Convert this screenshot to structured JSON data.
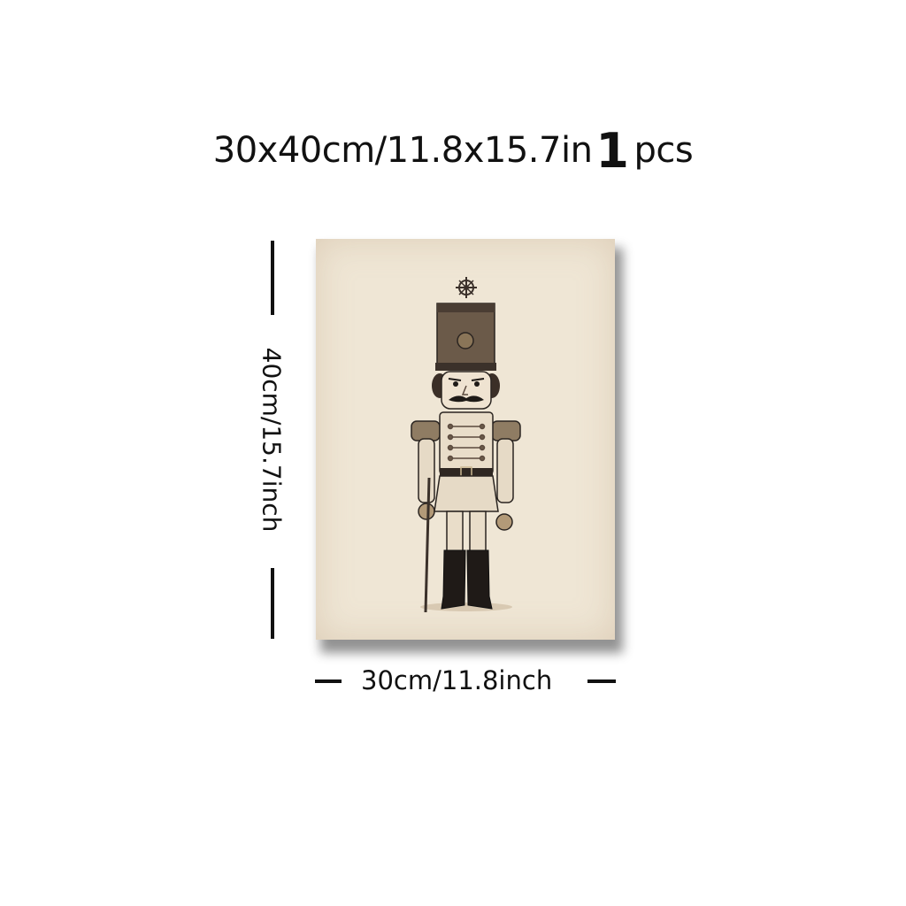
{
  "title": {
    "size_text": "30x40cm/11.8x15.7in",
    "count": "1",
    "unit": "pcs"
  },
  "dimensions": {
    "height_label": "40cm/15.7inch",
    "width_label": "30cm/11.8inch"
  },
  "artwork": {
    "subject": "nutcracker-soldier",
    "background_color": "#efe6d5",
    "ink_color": "#2b2521"
  }
}
